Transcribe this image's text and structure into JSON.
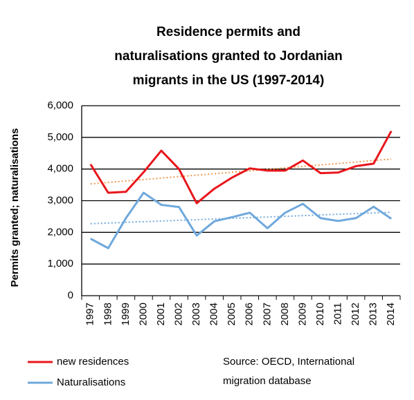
{
  "chart_data": {
    "type": "line",
    "title_lines": [
      "Residence permits and",
      "naturalisations granted to Jordanian",
      "migrants in the US (1997-2014)"
    ],
    "y_label": "Permits granted; naturalisations",
    "annotation_lines": [
      "Source: OECD, International",
      "migration database"
    ],
    "categories": [
      "1997",
      "1998",
      "1999",
      "2000",
      "2001",
      "2002",
      "2003",
      "2004",
      "2005",
      "2006",
      "2007",
      "2008",
      "2009",
      "2010",
      "2011",
      "2012",
      "2013",
      "2014"
    ],
    "series": [
      {
        "name": "new residences",
        "color": "#e8161c",
        "trend_color": "#f0964a",
        "values": [
          4150,
          3250,
          3280,
          3900,
          4580,
          4000,
          2920,
          3380,
          3730,
          4020,
          3950,
          3950,
          4270,
          3870,
          3890,
          4090,
          4170,
          5200
        ]
      },
      {
        "name": "Naturalisations",
        "color": "#6fa8dc",
        "trend_color": "#6fa8dc",
        "values": [
          1800,
          1500,
          2450,
          3250,
          2870,
          2800,
          1900,
          2350,
          2480,
          2620,
          2130,
          2620,
          2900,
          2450,
          2360,
          2450,
          2810,
          2430
        ]
      }
    ],
    "trendline": true,
    "ylim": [
      0,
      6000
    ],
    "yticks": [
      0,
      {
        "value": 1000,
        "label": "1,000"
      },
      {
        "value": 2000,
        "label": "2,000"
      },
      {
        "value": 3000,
        "label": "3,000"
      },
      {
        "value": 4000,
        "label": "4,000"
      },
      {
        "value": 5000,
        "label": "5,000"
      },
      {
        "value": 6000,
        "label": "6,000"
      }
    ],
    "grid": true,
    "legend": "bottom-left"
  }
}
